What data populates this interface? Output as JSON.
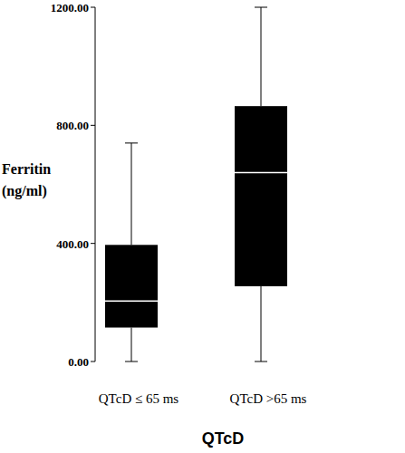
{
  "chart_data": {
    "type": "box",
    "x_label": "QTcD",
    "y_label": [
      "Ferritin",
      "(ng/ml)"
    ],
    "categories": [
      "QTcD ≤ 65 ms",
      "QTcD >65 ms"
    ],
    "stats": {
      "min": [
        0,
        0
      ],
      "q1": [
        115,
        255
      ],
      "median": [
        205,
        640
      ],
      "q3": [
        395,
        865
      ],
      "max": [
        740,
        1200
      ]
    },
    "color": "#000000",
    "ylim": [
      0,
      1200
    ],
    "yticks": [
      {
        "value": 0,
        "label": "0.00"
      },
      {
        "value": 400,
        "label": "400.00"
      },
      {
        "value": 800,
        "label": "800.00"
      },
      {
        "value": 1200,
        "label": "1200.00"
      }
    ],
    "grid": false
  }
}
